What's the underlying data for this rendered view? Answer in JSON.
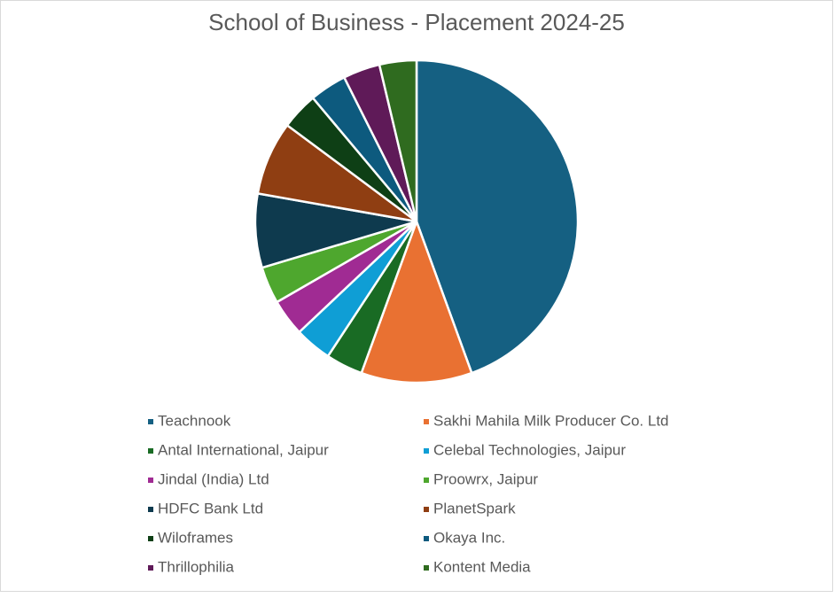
{
  "chart_data": {
    "type": "pie",
    "title": "School of Business - Placement 2024-25",
    "categories": [
      "Teachnook",
      "Sakhi Mahila Milk Producer Co. Ltd",
      "Antal International, Jaipur",
      "Celebal Technologies, Jaipur",
      "Jindal (India) Ltd",
      "Proowrx, Jaipur",
      "HDFC Bank Ltd",
      "PlanetSpark",
      "Wiloframes",
      "Okaya Inc.",
      "Thrillophilia",
      "Kontent Media"
    ],
    "values": [
      12,
      3,
      1,
      1,
      1,
      1,
      2,
      2,
      1,
      1,
      1,
      1
    ],
    "colors": [
      "#156082",
      "#e97132",
      "#196b24",
      "#0f9ed5",
      "#a02b93",
      "#4ea72e",
      "#0e3a4e",
      "#8f3e12",
      "#0e3f15",
      "#0d5a7e",
      "#5f1a58",
      "#2f6b1f"
    ],
    "legend": "bottom"
  }
}
